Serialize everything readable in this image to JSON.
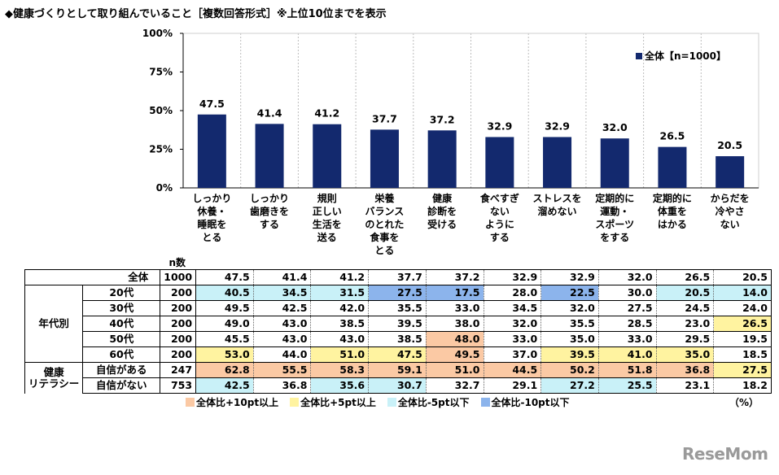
{
  "title": "◆健康づくりとして取り組んでいること［複数回答形式］※上位10位までを表示",
  "chart_data": {
    "type": "bar",
    "title": "◆健康づくりとして取り組んでいること［複数回答形式］※上位10位までを表示",
    "categories": [
      [
        "しっかり",
        "休養・",
        "睡眠を",
        "とる"
      ],
      [
        "しっかり",
        "歯磨きを",
        "する"
      ],
      [
        "規則",
        "正しい",
        "生活を",
        "送る"
      ],
      [
        "栄養",
        "バランス",
        "のとれた",
        "食事を",
        "とる"
      ],
      [
        "健康",
        "診断を",
        "受ける"
      ],
      [
        "食べすぎ",
        "ない",
        "ように",
        "する"
      ],
      [
        "ストレスを",
        "溜めない"
      ],
      [
        "定期的に",
        "運動・",
        "スポーツ",
        "をする"
      ],
      [
        "定期的に",
        "体重を",
        "はかる"
      ],
      [
        "からだを",
        "冷やさ",
        "ない"
      ]
    ],
    "series": [
      {
        "name": "全体【n=1000】",
        "values": [
          47.5,
          41.4,
          41.2,
          37.7,
          37.2,
          32.9,
          32.9,
          32.0,
          26.5,
          20.5
        ]
      }
    ],
    "value_labels": [
      "47.5",
      "41.4",
      "41.2",
      "37.7",
      "37.2",
      "32.9",
      "32.9",
      "32.0",
      "26.5",
      "20.5"
    ],
    "yticks": [
      "0%",
      "25%",
      "50%",
      "75%",
      "100%"
    ],
    "ylim": [
      0,
      100
    ],
    "bar_color": "#13296e",
    "legend_position": "top-right",
    "legend_label": "全体【n=1000】"
  },
  "table": {
    "n_header": "n数",
    "rows": [
      {
        "group": "",
        "label": "全体",
        "n": "1000",
        "values": [
          "47.5",
          "41.4",
          "41.2",
          "37.7",
          "37.2",
          "32.9",
          "32.9",
          "32.0",
          "26.5",
          "20.5"
        ],
        "hl": [
          "",
          "",
          "",
          "",
          "",
          "",
          "",
          "",
          "",
          ""
        ]
      },
      {
        "group": "年代別",
        "label": "20代",
        "n": "200",
        "values": [
          "40.5",
          "34.5",
          "31.5",
          "27.5",
          "17.5",
          "28.0",
          "22.5",
          "30.0",
          "20.5",
          "14.0"
        ],
        "hl": [
          "c3",
          "c3",
          "c3",
          "c4",
          "c4",
          "",
          "c4",
          "",
          "c3",
          "c3"
        ]
      },
      {
        "group": "",
        "label": "30代",
        "n": "200",
        "values": [
          "49.5",
          "42.5",
          "42.0",
          "35.5",
          "33.0",
          "34.5",
          "32.0",
          "27.5",
          "24.5",
          "24.0"
        ],
        "hl": [
          "",
          "",
          "",
          "",
          "",
          "",
          "",
          "",
          "",
          ""
        ]
      },
      {
        "group": "",
        "label": "40代",
        "n": "200",
        "values": [
          "49.0",
          "43.0",
          "38.5",
          "39.5",
          "38.0",
          "32.0",
          "35.5",
          "28.5",
          "23.0",
          "26.5"
        ],
        "hl": [
          "",
          "",
          "",
          "",
          "",
          "",
          "",
          "",
          "",
          "c2"
        ]
      },
      {
        "group": "",
        "label": "50代",
        "n": "200",
        "values": [
          "45.5",
          "43.0",
          "43.0",
          "38.5",
          "48.0",
          "33.0",
          "35.0",
          "33.0",
          "29.5",
          "19.5"
        ],
        "hl": [
          "",
          "",
          "",
          "",
          "c1",
          "",
          "",
          "",
          "",
          ""
        ]
      },
      {
        "group": "",
        "label": "60代",
        "n": "200",
        "values": [
          "53.0",
          "44.0",
          "51.0",
          "47.5",
          "49.5",
          "37.0",
          "39.5",
          "41.0",
          "35.0",
          "18.5"
        ],
        "hl": [
          "c2",
          "",
          "c2",
          "c2",
          "c1",
          "",
          "c2",
          "c2",
          "c2",
          ""
        ]
      },
      {
        "group": "健康\nリテラシー",
        "label": "自信がある",
        "n": "247",
        "values": [
          "62.8",
          "55.5",
          "58.3",
          "59.1",
          "51.0",
          "44.5",
          "50.2",
          "51.8",
          "36.8",
          "27.5"
        ],
        "hl": [
          "c1",
          "c1",
          "c1",
          "c1",
          "c1",
          "c1",
          "c1",
          "c1",
          "c1",
          "c2"
        ]
      },
      {
        "group": "",
        "label": "自信がない",
        "n": "753",
        "values": [
          "42.5",
          "36.8",
          "35.6",
          "30.7",
          "32.7",
          "29.1",
          "27.2",
          "25.5",
          "23.1",
          "18.2"
        ],
        "hl": [
          "c3",
          "",
          "c3",
          "c3",
          "",
          "",
          "c3",
          "c3",
          "",
          ""
        ]
      }
    ]
  },
  "legend": [
    {
      "label": "全体比+10pt以上",
      "color": "#fbc9a4"
    },
    {
      "label": "全体比+5pt以上",
      "color": "#fff3a0"
    },
    {
      "label": "全体比-5pt以下",
      "color": "#c9f1f8"
    },
    {
      "label": "全体比-10pt以下",
      "color": "#8cb4ec"
    }
  ],
  "unit": "（%）",
  "logo": "ReseMom"
}
